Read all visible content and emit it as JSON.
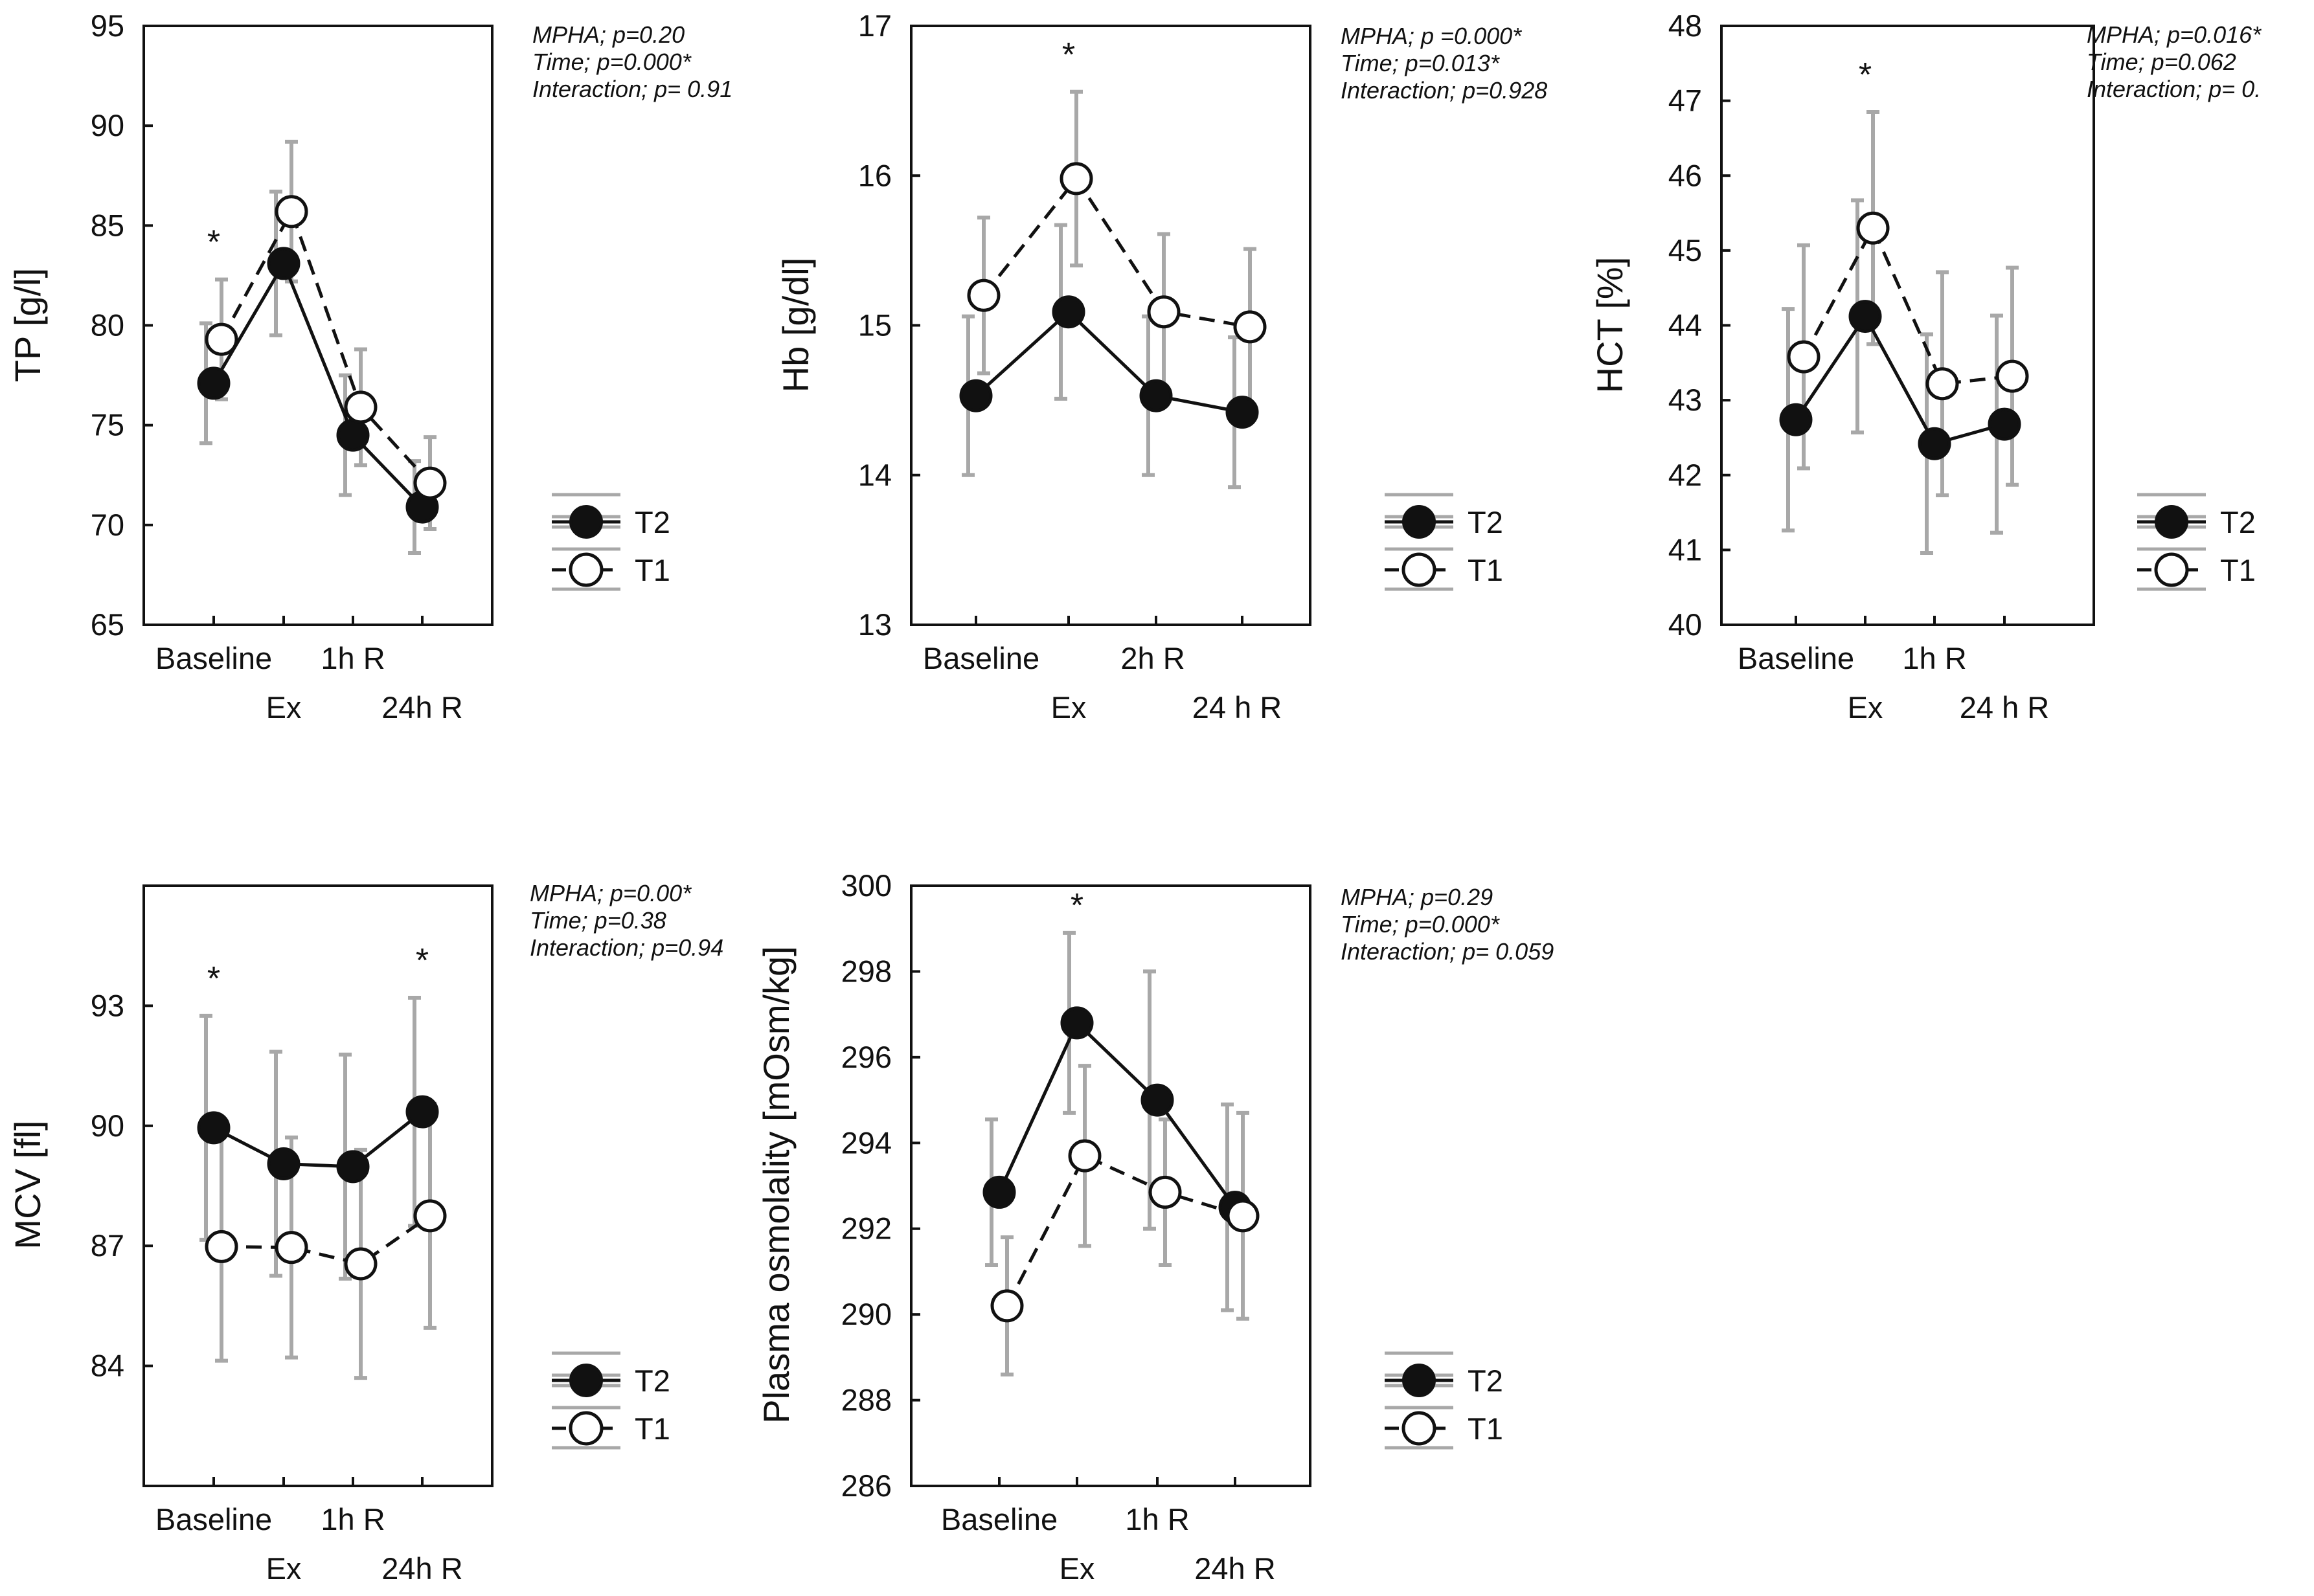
{
  "chart_data": [
    {
      "type": "line",
      "id": "tp",
      "ylabel": "TP [g/l]",
      "ylim": [
        65,
        95
      ],
      "yticks": [
        65,
        70,
        75,
        80,
        85,
        90,
        95
      ],
      "x": [
        "Baseline",
        "Ex",
        "1h R",
        "24h R"
      ],
      "series": [
        {
          "name": "T2",
          "values": [
            77.1,
            83.1,
            74.5,
            70.9
          ],
          "err": [
            3.0,
            3.6,
            3.0,
            2.3
          ],
          "marker": "filled",
          "line": "solid"
        },
        {
          "name": "T1",
          "values": [
            79.3,
            85.7,
            75.9,
            72.1
          ],
          "err": [
            3.0,
            3.5,
            2.9,
            2.3
          ],
          "marker": "open",
          "line": "dashed"
        }
      ],
      "stars": [
        0
      ],
      "stats": [
        "MPHA; p=0.20",
        "Time; p=0.000*",
        "Interaction; p= 0.91"
      ]
    },
    {
      "type": "line",
      "id": "hb",
      "ylabel": "Hb [g/dl]",
      "ylim": [
        13,
        17
      ],
      "yticks": [
        13,
        14,
        15,
        16,
        17
      ],
      "x": [
        "Baseline",
        "Ex",
        "2h R",
        "24 h R"
      ],
      "series": [
        {
          "name": "T2",
          "values": [
            14.53,
            15.09,
            14.53,
            14.42
          ],
          "err": [
            0.53,
            0.58,
            0.53,
            0.5
          ],
          "marker": "filled",
          "line": "solid"
        },
        {
          "name": "T1",
          "values": [
            15.2,
            15.98,
            15.09,
            14.99
          ],
          "err": [
            0.52,
            0.58,
            0.52,
            0.52
          ],
          "marker": "open",
          "line": "dashed"
        }
      ],
      "stars": [
        1
      ],
      "stats": [
        "MPHA; p =0.000*",
        "Time; p=0.013*",
        "Interaction; p=0.928"
      ]
    },
    {
      "type": "line",
      "id": "hct",
      "ylabel": "HCT [%]",
      "ylim": [
        40,
        48
      ],
      "yticks": [
        40,
        41,
        42,
        43,
        44,
        45,
        46,
        47,
        48
      ],
      "x": [
        "Baseline",
        "Ex",
        "1h R",
        "24 h R"
      ],
      "series": [
        {
          "name": "T2",
          "values": [
            42.74,
            44.12,
            42.42,
            42.68
          ],
          "err": [
            1.48,
            1.55,
            1.46,
            1.45
          ],
          "marker": "filled",
          "line": "solid"
        },
        {
          "name": "T1",
          "values": [
            43.58,
            45.3,
            43.22,
            43.32
          ],
          "err": [
            1.49,
            1.55,
            1.49,
            1.45
          ],
          "marker": "open",
          "line": "dashed"
        }
      ],
      "stars": [
        1
      ],
      "stats": [
        "MPHA; p=0.016*",
        "Time; p=0.062",
        "Interaction; p= 0."
      ]
    },
    {
      "type": "line",
      "id": "mcv",
      "ylabel": "MCV [fl]",
      "ylim": [
        81,
        96
      ],
      "yticks": [
        84,
        87,
        90,
        93
      ],
      "x": [
        "Baseline",
        "Ex",
        "1h R",
        "24h R"
      ],
      "series": [
        {
          "name": "T2",
          "values": [
            89.95,
            89.05,
            88.98,
            90.35
          ],
          "err": [
            2.8,
            2.8,
            2.8,
            2.85
          ],
          "marker": "filled",
          "line": "solid"
        },
        {
          "name": "T1",
          "values": [
            86.98,
            86.96,
            86.55,
            87.75
          ],
          "err": [
            2.85,
            2.75,
            2.85,
            2.8
          ],
          "marker": "open",
          "line": "dashed"
        }
      ],
      "stars": [
        0,
        3
      ],
      "stats": [
        "MPHA; p=0.00*",
        "Time; p=0.38",
        "Interaction; p=0.94"
      ]
    },
    {
      "type": "line",
      "id": "osm",
      "ylabel": "Plasma osmolality [mOsm/kg]",
      "ylim": [
        286,
        300
      ],
      "yticks": [
        286,
        288,
        290,
        292,
        294,
        296,
        298,
        300
      ],
      "x": [
        "Baseline",
        "Ex",
        "1h R",
        "24h R"
      ],
      "series": [
        {
          "name": "T2",
          "values": [
            292.85,
            296.8,
            295.0,
            292.5
          ],
          "err": [
            1.7,
            2.1,
            3.0,
            2.4
          ],
          "marker": "filled",
          "line": "solid"
        },
        {
          "name": "T1",
          "values": [
            290.2,
            293.7,
            292.85,
            292.3
          ],
          "err": [
            1.6,
            2.1,
            1.7,
            2.4
          ],
          "marker": "open",
          "line": "dashed"
        }
      ],
      "stars": [
        1
      ],
      "stats": [
        "MPHA; p=0.29",
        "Time; p=0.000*",
        "Interaction; p= 0.059"
      ]
    }
  ],
  "legend": [
    "T2",
    "T1"
  ]
}
